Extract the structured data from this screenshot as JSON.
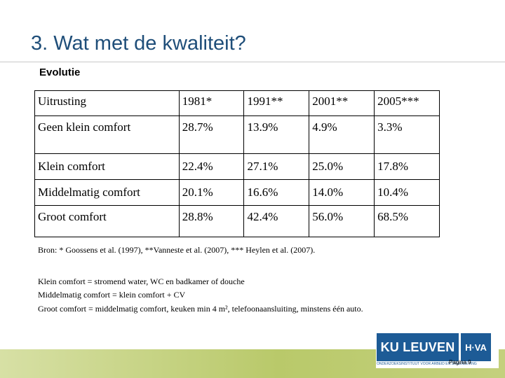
{
  "slide": {
    "title": "3. Wat met de kwaliteit?",
    "subtitle": "Evolutie"
  },
  "table": {
    "headers": [
      "Uitrusting",
      "1981*",
      "1991**",
      "2001**",
      "2005***"
    ],
    "rows": [
      [
        "Geen klein comfort",
        "28.7%",
        "13.9%",
        "4.9%",
        "3.3%"
      ],
      [
        "Klein comfort",
        "22.4%",
        "27.1%",
        "25.0%",
        "17.8%"
      ],
      [
        "Middelmatig comfort",
        "20.1%",
        "16.6%",
        "14.0%",
        "10.4%"
      ],
      [
        "Groot comfort",
        "28.8%",
        "42.4%",
        "56.0%",
        "68.5%"
      ]
    ]
  },
  "notes": {
    "sources": "Bron: * Goossens et al. (1997), **Vanneste et al. (2007), *** Heylen et al. (2007).",
    "def_klein": "Klein comfort = stromend water, WC en badkamer of douche",
    "def_middelmatig": "Middelmatig comfort = klein comfort + CV",
    "def_groot": "Groot comfort = middelmatig comfort, keuken min  4 m², telefoonaansluiting, minstens één auto."
  },
  "footer": {
    "logo_ku": "KU LEUVEN",
    "logo_hva": "H·VA",
    "logo_strip": "ONDERZOEKSINSTITUUT VOOR ARBEID EN SAMENLEVING",
    "page_number": "Pagina 9"
  }
}
